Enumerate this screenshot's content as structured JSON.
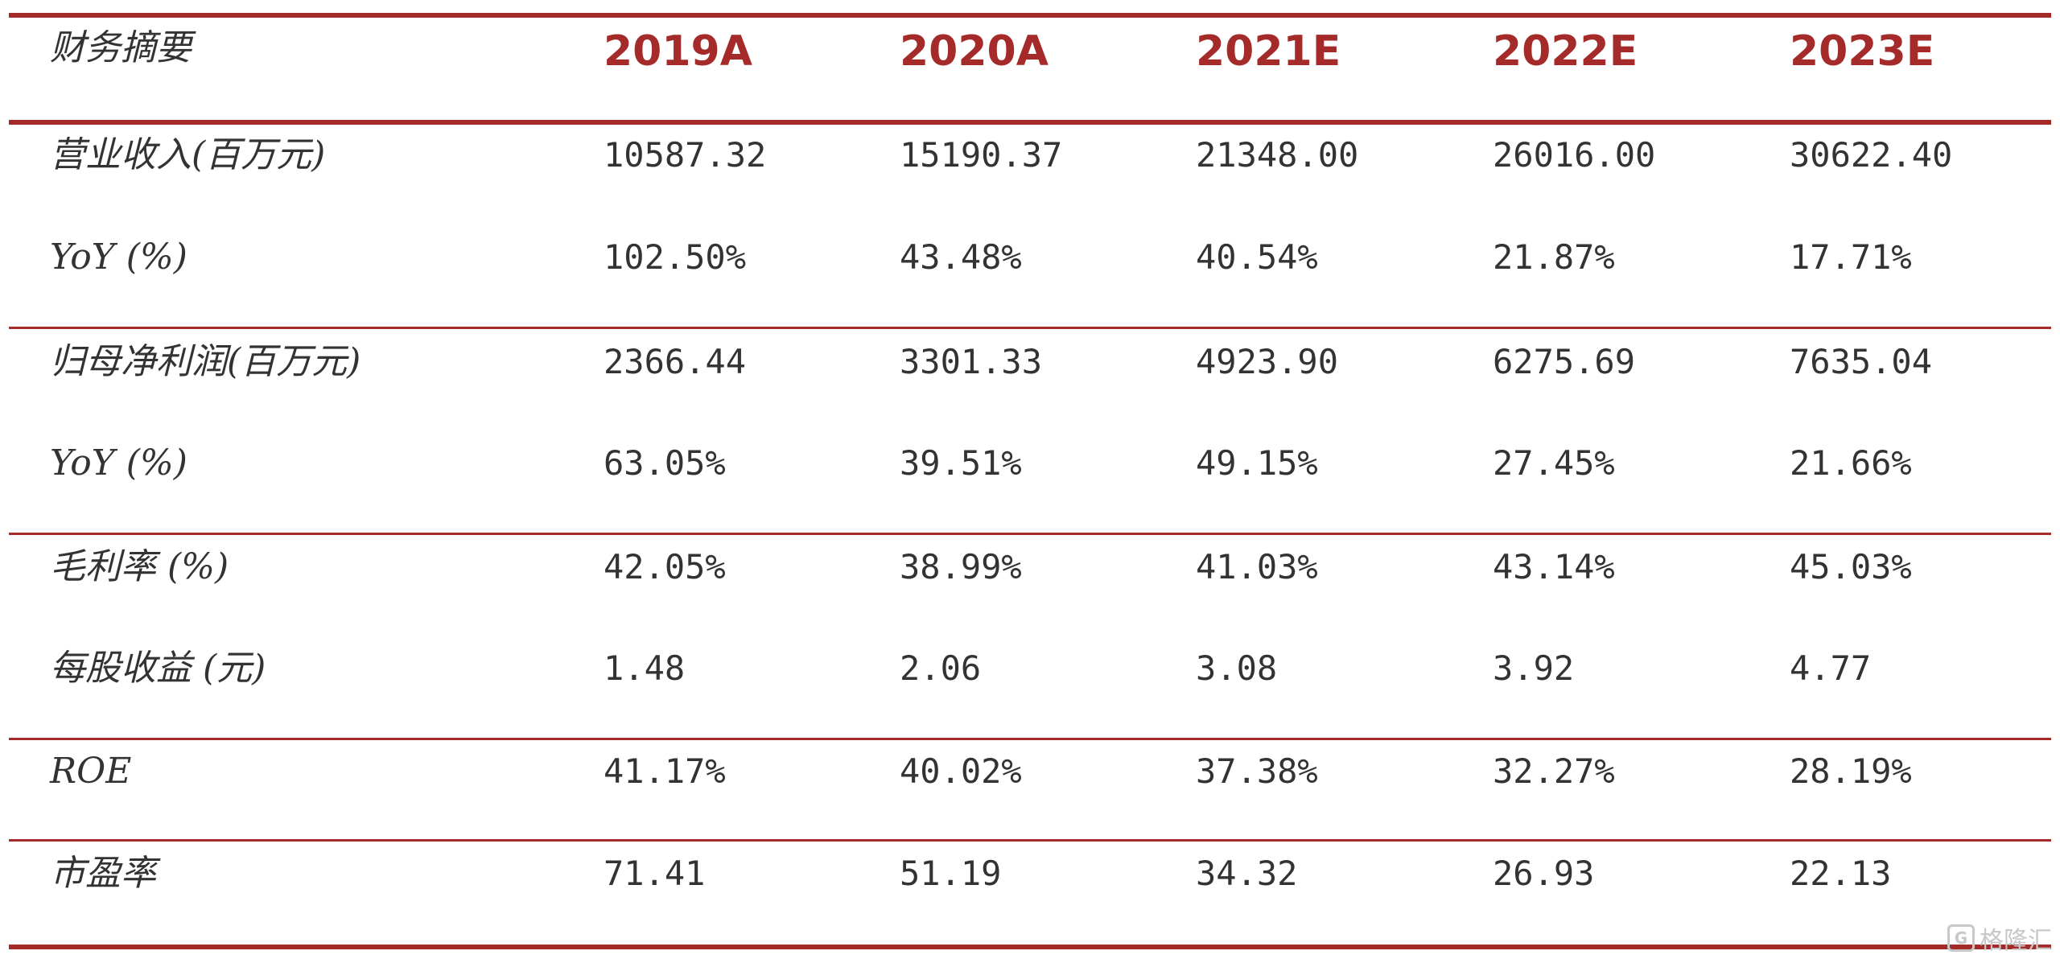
{
  "header": {
    "label": "财务摘要",
    "years": [
      "2019A",
      "2020A",
      "2021E",
      "2022E",
      "2023E"
    ]
  },
  "rows": [
    {
      "label": "营业收入(百万元)",
      "values": [
        "10587.32",
        "15190.37",
        "21348.00",
        "26016.00",
        "30622.40"
      ]
    },
    {
      "label": "YoY (%)",
      "values": [
        "102.50%",
        "43.48%",
        "40.54%",
        "21.87%",
        "17.71%"
      ]
    },
    {
      "label": "归母净利润(百万元)",
      "values": [
        "2366.44",
        "3301.33",
        "4923.90",
        "6275.69",
        "7635.04"
      ]
    },
    {
      "label": "YoY (%)",
      "values": [
        "63.05%",
        "39.51%",
        "49.15%",
        "27.45%",
        "21.66%"
      ]
    },
    {
      "label": "毛利率 (%)",
      "values": [
        "42.05%",
        "38.99%",
        "41.03%",
        "43.14%",
        "45.03%"
      ]
    },
    {
      "label": "每股收益 (元)",
      "values": [
        "1.48",
        "2.06",
        "3.08",
        "3.92",
        "4.77"
      ]
    },
    {
      "label": "ROE",
      "values": [
        "41.17%",
        "40.02%",
        "37.38%",
        "32.27%",
        "28.19%"
      ]
    },
    {
      "label": "市盈率",
      "values": [
        "71.41",
        "51.19",
        "34.32",
        "26.93",
        "22.13"
      ]
    }
  ],
  "watermark": {
    "logo_letter": "G",
    "text": "格隆汇"
  },
  "colors": {
    "accent": "#a52a2a",
    "text": "#333333"
  }
}
